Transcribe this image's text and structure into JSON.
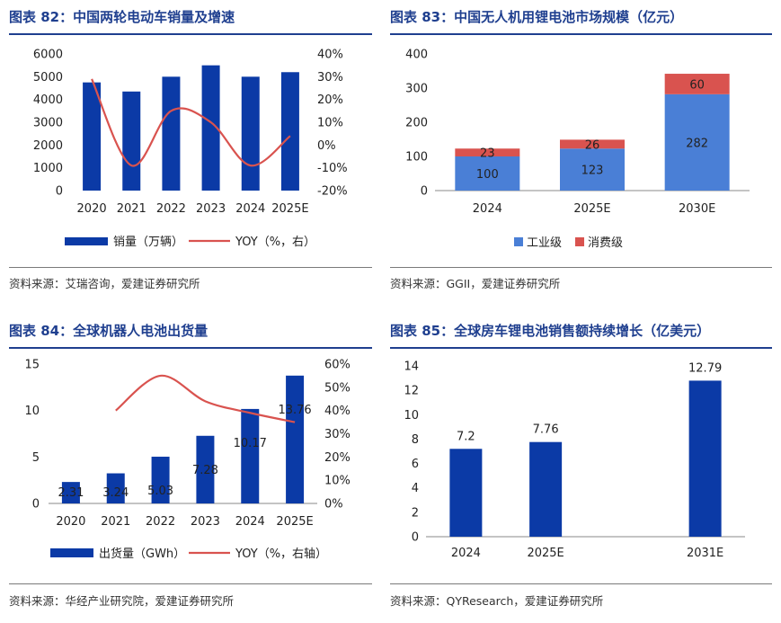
{
  "colors": {
    "bar": "#0b3aa6",
    "bar2": "#4a7fd6",
    "line": "#d9534f",
    "stack_top": "#d9534f",
    "title": "#1f3f8f"
  },
  "panels": {
    "p82": {
      "title": "图表 82：中国两轮电动车销量及增速",
      "source": "资料来源：艾瑞咨询，爱建证券研究所"
    },
    "p83": {
      "title": "图表 83：中国无人机用锂电池市场规模（亿元）",
      "source": "资料来源：GGII，爱建证券研究所"
    },
    "p84": {
      "title": "图表 84：全球机器人电池出货量",
      "source": "资料来源：华经产业研究院，爱建证券研究所"
    },
    "p85": {
      "title": "图表 85：全球房车锂电池销售额持续增长（亿美元）",
      "source": "资料来源：QYResearch，爱建证券研究所"
    }
  },
  "chart_data": [
    {
      "id": "c82",
      "type": "bar+line",
      "categories": [
        "2020",
        "2021",
        "2022",
        "2023",
        "2024",
        "2025E"
      ],
      "series": [
        {
          "name": "销量（万辆）",
          "kind": "bar",
          "axis": "left",
          "values": [
            4750,
            4350,
            5000,
            5500,
            5000,
            5200
          ]
        },
        {
          "name": "YOY（%，右）",
          "kind": "line",
          "axis": "right",
          "values": [
            29,
            -9,
            15,
            10,
            -9,
            4
          ]
        }
      ],
      "yticks": [
        "0",
        "1000",
        "2000",
        "3000",
        "4000",
        "5000",
        "6000"
      ],
      "ylim": [
        0,
        6000
      ],
      "y2ticks": [
        "-20%",
        "-10%",
        "0%",
        "10%",
        "20%",
        "30%",
        "40%"
      ],
      "y2lim": [
        -20,
        40
      ]
    },
    {
      "id": "c83",
      "type": "stacked-bar",
      "categories": [
        "2024",
        "2025E",
        "2030E"
      ],
      "series": [
        {
          "name": "工业级",
          "values": [
            100,
            123,
            282
          ],
          "labels": [
            "100",
            "123",
            "282"
          ]
        },
        {
          "name": "消费级",
          "values": [
            23,
            26,
            60
          ],
          "labels": [
            "23",
            "26",
            "60"
          ]
        }
      ],
      "yticks": [
        "0",
        "100",
        "200",
        "300",
        "400"
      ],
      "ylim": [
        0,
        400
      ]
    },
    {
      "id": "c84",
      "type": "bar+line",
      "categories": [
        "2020",
        "2021",
        "2022",
        "2023",
        "2024",
        "2025E"
      ],
      "series": [
        {
          "name": "出货量（GWh）",
          "kind": "bar",
          "axis": "left",
          "values": [
            2.31,
            3.24,
            5.03,
            7.28,
            10.17,
            13.76
          ],
          "labels": [
            "2.31",
            "3.24",
            "5.03",
            "7.28",
            "10.17",
            "13.76"
          ]
        },
        {
          "name": "YOY（%，右轴）",
          "kind": "line",
          "axis": "right",
          "values": [
            null,
            40,
            55,
            44,
            39,
            35
          ]
        }
      ],
      "yticks": [
        "0",
        "5",
        "10",
        "15"
      ],
      "ylim": [
        0,
        15
      ],
      "y2ticks": [
        "0%",
        "10%",
        "20%",
        "30%",
        "40%",
        "50%",
        "60%"
      ],
      "y2lim": [
        0,
        60
      ]
    },
    {
      "id": "c85",
      "type": "bar",
      "categories": [
        "2024",
        "2025E",
        "",
        "2031E"
      ],
      "values": [
        7.2,
        7.76,
        null,
        12.79
      ],
      "labels": [
        "7.2",
        "7.76",
        "",
        "12.79"
      ],
      "yticks": [
        "0",
        "2",
        "4",
        "6",
        "8",
        "10",
        "12",
        "14"
      ],
      "ylim": [
        0,
        14
      ]
    }
  ]
}
